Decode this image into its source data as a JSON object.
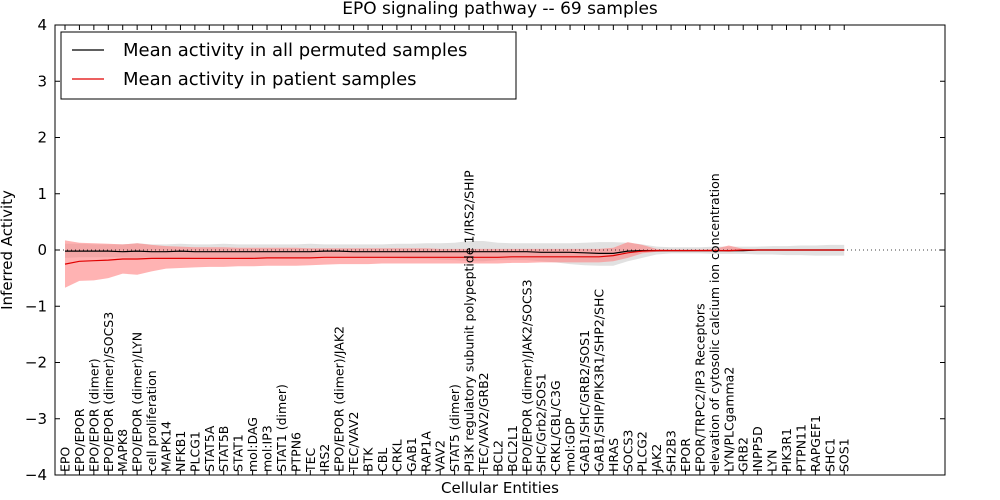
{
  "chart_data": {
    "type": "line",
    "title": "EPO signaling pathway -- 69 samples",
    "xlabel": "Cellular Entities",
    "ylabel": "Inferred Activity",
    "ylim": [
      -4,
      4
    ],
    "yticks": [
      -4,
      -3,
      -2,
      -1,
      0,
      1,
      2,
      3,
      4
    ],
    "ytick_labels": [
      "−4",
      "−3",
      "−2",
      "−1",
      "0",
      "1",
      "2",
      "3",
      "4"
    ],
    "grid": false,
    "legend_position": "top-left",
    "categories": [
      "EPO",
      "EPO/EPOR",
      "EPO/EPOR (dimer)",
      "EPO/EPOR (dimer)/SOCS3",
      "MAPK8",
      "EPO/EPOR (dimer)/LYN",
      "cell proliferation",
      "MAPK14",
      "NFKB1",
      "PLCG1",
      "STAT5A",
      "STAT5B",
      "STAT1",
      "mol:DAG",
      "mol:IP3",
      "STAT1 (dimer)",
      "PTPN6",
      "TEC",
      "IRS2",
      "EPO/EPOR (dimer)/JAK2",
      "TEC/VAV2",
      "BTK",
      "CBL",
      "CRKL",
      "GAB1",
      "RAP1A",
      "VAV2",
      "STAT5 (dimer)",
      "PI3K regulatory subunit polypeptide 1/IRS2/SHIP",
      "TEC/VAV2/GRB2",
      "BCL2",
      "BCL2L1",
      "EPO/EPOR (dimer)/JAK2/SOCS3",
      "SHC/Grb2/SOS1",
      "CRKL/CBL/C3G",
      "mol:GDP",
      "GAB1/SHC/GRB2/SOS1",
      "GAB1/SHIP/PIK3R1/SHP2/SHC",
      "HRAS",
      "SOCS3",
      "PLCG2",
      "JAK2",
      "SH2B3",
      "EPOR",
      "EPOR/TRPC2/IP3 Receptors",
      "elevation of cytosolic calcium ion concentration",
      "LYN/PLCgamma2",
      "GRB2",
      "INPP5D",
      "LYN",
      "PIK3R1",
      "PTPN11",
      "RAPGEF1",
      "SHC1",
      "SOS1"
    ],
    "series": [
      {
        "name": "Mean activity in all permuted samples",
        "color": "#000000",
        "band_color": "#c8c8c8",
        "values": [
          -0.02,
          -0.02,
          -0.02,
          -0.02,
          -0.03,
          -0.02,
          -0.03,
          -0.03,
          -0.02,
          -0.03,
          -0.03,
          -0.03,
          -0.03,
          -0.03,
          -0.03,
          -0.03,
          -0.03,
          -0.03,
          -0.02,
          -0.02,
          -0.03,
          -0.03,
          -0.03,
          -0.03,
          -0.03,
          -0.03,
          -0.03,
          -0.03,
          -0.03,
          -0.03,
          -0.03,
          -0.03,
          -0.03,
          -0.04,
          -0.04,
          -0.04,
          -0.05,
          -0.06,
          -0.06,
          -0.02,
          -0.01,
          -0.01,
          -0.01,
          -0.01,
          -0.01,
          -0.01,
          -0.01,
          -0.01,
          0.0,
          0.0,
          0.0,
          0.0,
          0.0,
          0.0,
          0.0
        ],
        "lower": [
          -0.14,
          -0.13,
          -0.13,
          -0.13,
          -0.13,
          -0.14,
          -0.13,
          -0.14,
          -0.14,
          -0.13,
          -0.13,
          -0.13,
          -0.13,
          -0.14,
          -0.13,
          -0.14,
          -0.14,
          -0.15,
          -0.14,
          -0.13,
          -0.14,
          -0.14,
          -0.14,
          -0.15,
          -0.16,
          -0.16,
          -0.17,
          -0.18,
          -0.2,
          -0.2,
          -0.18,
          -0.18,
          -0.18,
          -0.2,
          -0.22,
          -0.25,
          -0.27,
          -0.28,
          -0.28,
          -0.2,
          -0.14,
          -0.08,
          -0.06,
          -0.06,
          -0.06,
          -0.07,
          -0.07,
          -0.07,
          -0.08,
          -0.08,
          -0.09,
          -0.09,
          -0.1,
          -0.1,
          -0.1
        ],
        "upper": [
          0.11,
          0.11,
          0.1,
          0.1,
          0.1,
          0.12,
          0.1,
          0.1,
          0.11,
          0.1,
          0.1,
          0.11,
          0.1,
          0.1,
          0.1,
          0.1,
          0.1,
          0.11,
          0.1,
          0.1,
          0.1,
          0.1,
          0.1,
          0.11,
          0.11,
          0.12,
          0.12,
          0.13,
          0.16,
          0.16,
          0.13,
          0.12,
          0.12,
          0.12,
          0.12,
          0.12,
          0.13,
          0.14,
          0.14,
          0.13,
          0.1,
          0.06,
          0.05,
          0.05,
          0.05,
          0.06,
          0.06,
          0.06,
          0.06,
          0.07,
          0.07,
          0.08,
          0.08,
          0.09,
          0.09
        ]
      },
      {
        "name": "Mean activity in patient samples",
        "color": "#e00000",
        "band_color": "#ff8080",
        "values": [
          -0.25,
          -0.2,
          -0.19,
          -0.18,
          -0.16,
          -0.16,
          -0.15,
          -0.15,
          -0.15,
          -0.15,
          -0.15,
          -0.15,
          -0.15,
          -0.15,
          -0.14,
          -0.14,
          -0.14,
          -0.14,
          -0.13,
          -0.13,
          -0.13,
          -0.13,
          -0.13,
          -0.13,
          -0.13,
          -0.13,
          -0.13,
          -0.13,
          -0.13,
          -0.13,
          -0.13,
          -0.12,
          -0.12,
          -0.12,
          -0.12,
          -0.12,
          -0.12,
          -0.12,
          -0.1,
          -0.05,
          -0.02,
          -0.01,
          -0.01,
          -0.01,
          -0.01,
          -0.01,
          -0.01,
          0.0,
          0.0,
          0.0,
          0.0,
          0.0,
          0.0,
          0.0,
          0.0
        ],
        "lower": [
          -0.67,
          -0.55,
          -0.54,
          -0.5,
          -0.42,
          -0.44,
          -0.38,
          -0.33,
          -0.32,
          -0.31,
          -0.3,
          -0.3,
          -0.29,
          -0.29,
          -0.28,
          -0.28,
          -0.28,
          -0.27,
          -0.26,
          -0.25,
          -0.25,
          -0.25,
          -0.24,
          -0.24,
          -0.24,
          -0.24,
          -0.24,
          -0.24,
          -0.24,
          -0.24,
          -0.24,
          -0.23,
          -0.23,
          -0.22,
          -0.22,
          -0.22,
          -0.22,
          -0.22,
          -0.2,
          -0.14,
          -0.06,
          -0.03,
          -0.02,
          -0.02,
          -0.02,
          -0.02,
          -0.03,
          -0.02,
          -0.01,
          -0.01,
          -0.01,
          -0.01,
          -0.01,
          -0.01,
          -0.01
        ],
        "upper": [
          0.17,
          0.13,
          0.12,
          0.11,
          0.1,
          0.12,
          0.09,
          0.07,
          0.06,
          0.05,
          0.05,
          0.05,
          0.04,
          0.04,
          0.04,
          0.04,
          0.04,
          0.03,
          0.03,
          0.03,
          0.03,
          0.03,
          0.03,
          0.03,
          0.03,
          0.03,
          0.02,
          0.02,
          0.02,
          0.02,
          0.02,
          0.02,
          0.02,
          0.02,
          0.02,
          0.02,
          0.02,
          0.02,
          0.04,
          0.14,
          0.09,
          0.02,
          0.01,
          0.01,
          0.01,
          0.02,
          0.08,
          0.02,
          0.01,
          0.01,
          0.01,
          0.01,
          0.01,
          0.01,
          0.01
        ]
      }
    ]
  }
}
